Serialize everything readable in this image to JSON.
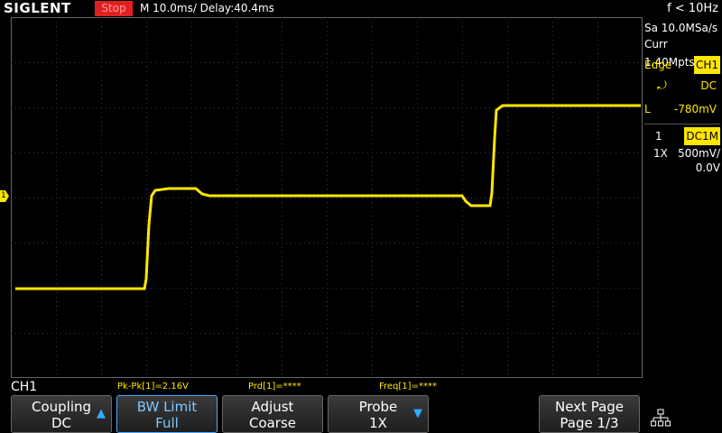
{
  "topbar": {
    "brand": "SIGLENT",
    "run_state": "Stop",
    "timebase": "M 10.0ms/ Delay:40.4ms",
    "trigger_freq": "f < 10Hz"
  },
  "side": {
    "sample_rate": "Sa 10.0MSa/s",
    "memory": "Curr 1.40Mpts",
    "trigger_label": "Edge",
    "trigger_source": "CH1",
    "trigger_coupling": "DC",
    "trigger_level_prefix": "L",
    "trigger_level": "-780mV",
    "channel_number": "1",
    "channel_coupling": "DC1M",
    "probe": "1X",
    "volts_div": "500mV/",
    "offset": "0.0V"
  },
  "channel_marker": "1",
  "measurements": {
    "channel": "CH1",
    "pkpk": "Pk-Pk[1]=2.16V",
    "prd": "Prd[1]=****",
    "freq": "Freq[1]=****"
  },
  "softkeys": [
    {
      "line1": "Coupling",
      "line2": "DC",
      "arrow": "up-arrow-icon"
    },
    {
      "line1": "BW Limit",
      "line2": "Full"
    },
    {
      "line1": "Adjust",
      "line2": "Coarse"
    },
    {
      "line1": "Probe",
      "line2": "1X",
      "arrow": "down-arrow-icon"
    },
    {
      "line1": "Next Page",
      "line2": "Page 1/3"
    }
  ],
  "colors": {
    "trace": "#ffe600",
    "accent": "#33aaff",
    "stop": "#e02020"
  }
}
